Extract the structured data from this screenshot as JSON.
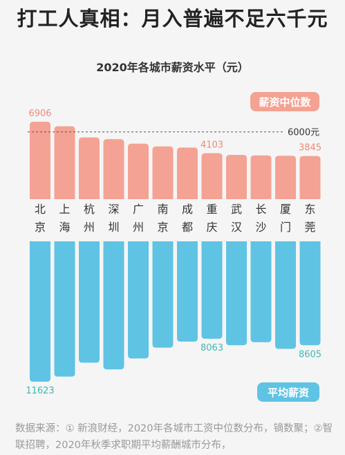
{
  "headline": "打工人真相：月入普遍不足六千元",
  "source_text": "数据来源：① 新浪财经，2020年各城市工资中位数分布，镝数聚；②智联招聘，2020年秋季求职期平均薪酬城市分布，",
  "colors": {
    "median": "#f4a293",
    "average": "#5fc3e4",
    "median_label": "#ed8a78",
    "average_label": "#3fb8b0"
  },
  "chart_data": {
    "type": "bar",
    "title": "2020年各城市薪资水平（元）",
    "categories": [
      [
        "北",
        "京"
      ],
      [
        "上",
        "海"
      ],
      [
        "杭",
        "州"
      ],
      [
        "深",
        "圳"
      ],
      [
        "广",
        "州"
      ],
      [
        "南",
        "京"
      ],
      [
        "成",
        "都"
      ],
      [
        "重",
        "庆"
      ],
      [
        "武",
        "汉"
      ],
      [
        "长",
        "沙"
      ],
      [
        "厦",
        "门"
      ],
      [
        "东",
        "莞"
      ]
    ],
    "series": [
      {
        "name": "薪资中位数",
        "direction": "up",
        "values": [
          6906,
          6500,
          5500,
          5350,
          4950,
          4700,
          4600,
          4103,
          3950,
          3900,
          3870,
          3845
        ],
        "labeled": {
          "0": "6906",
          "7": "4103",
          "11": "3845"
        }
      },
      {
        "name": "平均薪资",
        "direction": "down",
        "values": [
          11623,
          11200,
          10050,
          10600,
          9700,
          8800,
          8300,
          8063,
          8600,
          8350,
          8900,
          8605
        ],
        "labeled": {
          "0": "11623",
          "7": "8063",
          "11": "8605"
        }
      }
    ],
    "reference_line": {
      "value": 6000,
      "label": "6000元"
    }
  }
}
